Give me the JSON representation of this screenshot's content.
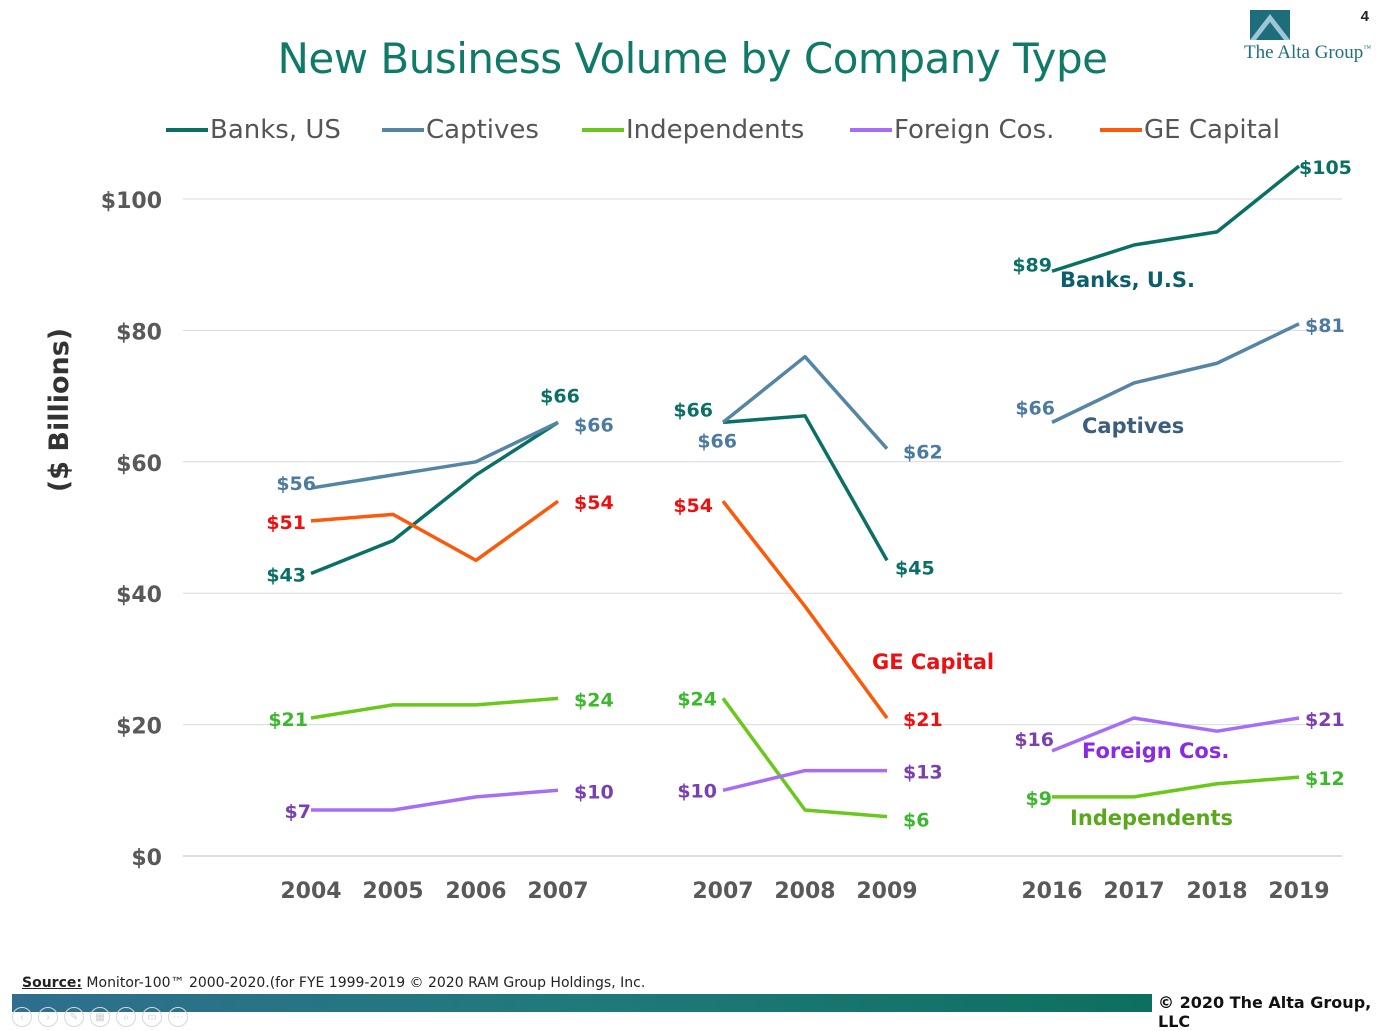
{
  "page_number": "4",
  "title": "New Business Volume by Company Type",
  "logo_text": "The Alta Group",
  "logo_tm": "™",
  "source_label": "Source:",
  "source_text": " Monitor-100™ 2000-2020.(for FYE 1999-2019   © 2020 RAM Group Holdings, Inc.",
  "copyright": "© 2020 The Alta Group, LLC",
  "colors": {
    "title": "#0f7a68",
    "banks": "#0a7065",
    "captives": "#5585a4",
    "independents": "#6ac81c",
    "foreign": "#a66ef4",
    "ge": "#fa5a0a"
  },
  "nav_icons": [
    "prev-icon",
    "next-icon",
    "pen-icon",
    "slides-icon",
    "zoom-icon",
    "subtitle-icon",
    "more-icon"
  ],
  "chart_data": {
    "type": "line",
    "ylabel": "($ Billions)",
    "ylim": [
      0,
      100
    ],
    "yticks": [
      0,
      20,
      40,
      60,
      80,
      100
    ],
    "ytick_labels": [
      "$0",
      "$20",
      "$40",
      "$60",
      "$80",
      "$100"
    ],
    "legend": [
      "Banks, US",
      "Captives",
      "Independents",
      "Foreign Cos.",
      "GE Capital"
    ],
    "panels": [
      {
        "x": [
          "2004",
          "2005",
          "2006",
          "2007"
        ],
        "series": [
          {
            "name": "Banks, US",
            "key": "banks",
            "values": [
              43,
              48,
              58,
              66
            ],
            "labels": [
              "$43",
              "",
              "",
              "$66"
            ]
          },
          {
            "name": "Captives",
            "key": "captives",
            "values": [
              56,
              58,
              60,
              66
            ],
            "labels": [
              "$56",
              "",
              "",
              "$66"
            ]
          },
          {
            "name": "Independents",
            "key": "independents",
            "values": [
              21,
              23,
              23,
              24
            ],
            "labels": [
              "$21",
              "",
              "",
              "$24"
            ]
          },
          {
            "name": "Foreign Cos.",
            "key": "foreign",
            "values": [
              7,
              7,
              9,
              10
            ],
            "labels": [
              "$7",
              "",
              "",
              "$10"
            ]
          },
          {
            "name": "GE Capital",
            "key": "ge",
            "values": [
              51,
              52,
              45,
              54
            ],
            "labels": [
              "$51",
              "",
              "",
              "$54"
            ]
          }
        ]
      },
      {
        "x": [
          "2007",
          "2008",
          "2009"
        ],
        "series": [
          {
            "name": "Banks, US",
            "key": "banks",
            "values": [
              66,
              67,
              45
            ],
            "labels": [
              "$66",
              "",
              "$45"
            ]
          },
          {
            "name": "Captives",
            "key": "captives",
            "values": [
              66,
              76,
              62
            ],
            "labels": [
              "$66",
              "",
              "$62"
            ]
          },
          {
            "name": "Independents",
            "key": "independents",
            "values": [
              24,
              7,
              6
            ],
            "labels": [
              "$24",
              "",
              "$6"
            ]
          },
          {
            "name": "Foreign Cos.",
            "key": "foreign",
            "values": [
              10,
              13,
              13
            ],
            "labels": [
              "$10",
              "",
              "$13"
            ]
          },
          {
            "name": "GE Capital",
            "key": "ge",
            "values": [
              54,
              38,
              21
            ],
            "labels": [
              "$54",
              "",
              "$21"
            ]
          }
        ]
      },
      {
        "x": [
          "2016",
          "2017",
          "2018",
          "2019"
        ],
        "series": [
          {
            "name": "Banks, US",
            "key": "banks",
            "values": [
              89,
              93,
              95,
              105
            ],
            "labels": [
              "$89",
              "",
              "",
              "$105"
            ]
          },
          {
            "name": "Captives",
            "key": "captives",
            "values": [
              66,
              72,
              75,
              81
            ],
            "labels": [
              "$66",
              "",
              "",
              "$81"
            ]
          },
          {
            "name": "Foreign Cos.",
            "key": "foreign",
            "values": [
              16,
              21,
              19,
              21
            ],
            "labels": [
              "$16",
              "",
              "",
              "$21"
            ]
          },
          {
            "name": "Independents",
            "key": "independents",
            "values": [
              9,
              9,
              11,
              12
            ],
            "labels": [
              "$9",
              "",
              "",
              "$12"
            ]
          }
        ]
      }
    ],
    "annotations": [
      {
        "text": "Banks, U.S.",
        "key": "banks"
      },
      {
        "text": "Captives",
        "key": "captives"
      },
      {
        "text": "GE Capital",
        "key": "ge"
      },
      {
        "text": "Foreign Cos.",
        "key": "foreign"
      },
      {
        "text": "Independents",
        "key": "independents"
      }
    ]
  }
}
